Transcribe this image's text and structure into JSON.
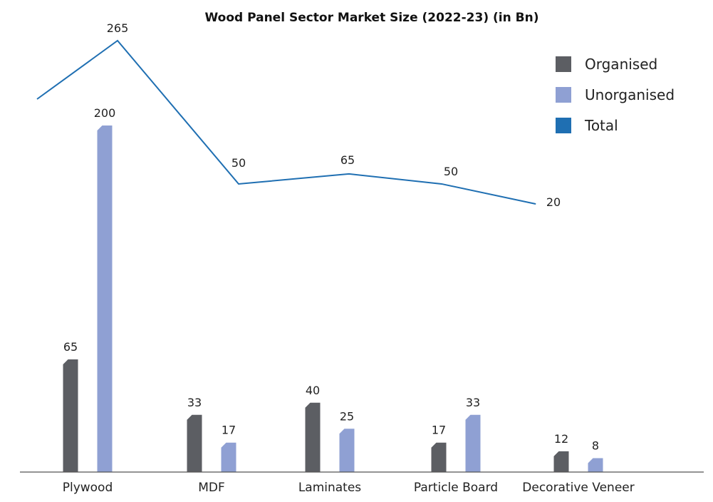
{
  "colors": {
    "organised": "#5c5e63",
    "unorganised": "#8fa0d3",
    "total": "#1f6fb2",
    "axis": "#555555"
  },
  "chart_data": {
    "type": "bar",
    "title": "Wood Panel Sector Market Size (2022-23) (in Bn)",
    "categories": [
      "Plywood",
      "MDF",
      "Laminates",
      "Particle Board",
      "Decorative Veneer"
    ],
    "series": [
      {
        "name": "Organised",
        "kind": "bar",
        "values": [
          65,
          33,
          40,
          17,
          12
        ]
      },
      {
        "name": "Unorganised",
        "kind": "bar",
        "values": [
          200,
          17,
          25,
          33,
          8
        ]
      },
      {
        "name": "Total",
        "kind": "line",
        "values": [
          265,
          50,
          65,
          50,
          20
        ]
      }
    ],
    "line_extends_to_left_edge": true,
    "legend": [
      "Organised",
      "Unorganised",
      "Total"
    ],
    "legend_position": "top-right",
    "grid": false
  }
}
